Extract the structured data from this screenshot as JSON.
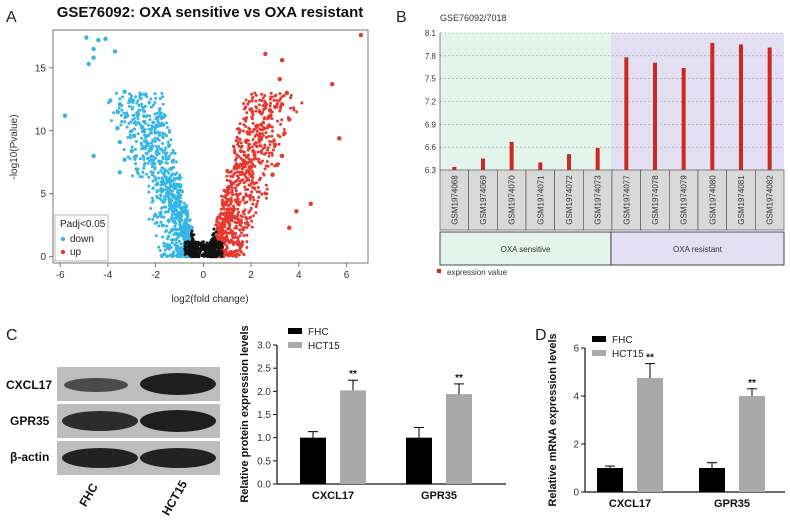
{
  "panels": {
    "a": "A",
    "b": "B",
    "c": "C",
    "d": "D"
  },
  "colors": {
    "down": "#35b6e6",
    "up": "#e8382f",
    "ns": "#111111",
    "expression": "#cc2a1f",
    "sensitive_bg": "#e3f4ec",
    "resistant_bg": "#e3e0f3",
    "fhc": "#000000",
    "hct15": "#a9a9a9"
  },
  "chart_data": [
    {
      "id": "volcano",
      "type": "scatter",
      "title": "GSE76092: OXA sensitive vs OXA resistant",
      "xlabel": "log2(fold change)",
      "ylabel": "-log10(Pvalue)",
      "xlim": [
        -6.3,
        6.9
      ],
      "ylim": [
        -0.5,
        18
      ],
      "xticks": [
        -6,
        -4,
        -2,
        0,
        2,
        4,
        6
      ],
      "yticks": [
        0,
        5,
        10,
        15
      ],
      "legend": {
        "title": "Padj<0.05",
        "items": [
          "down",
          "up"
        ],
        "position": "bottom-left"
      },
      "series": [
        {
          "name": "down",
          "points": [
            [
              -5.8,
              11.2
            ],
            [
              -4.9,
              17.4
            ],
            [
              -4.6,
              16.5
            ],
            [
              -4.4,
              17.2
            ],
            [
              -4.6,
              15.8
            ],
            [
              -4.8,
              15.3
            ],
            [
              -4.1,
              17.3
            ],
            [
              -3.7,
              16.3
            ],
            [
              -3.9,
              12.4
            ],
            [
              -3.3,
              13.1
            ],
            [
              -3.5,
              12.1
            ],
            [
              -3.2,
              11.2
            ],
            [
              -3.6,
              10.2
            ],
            [
              -3.5,
              9.1
            ],
            [
              -3.0,
              8.4
            ],
            [
              -2.9,
              9.6
            ],
            [
              -3.3,
              7.7
            ],
            [
              -3.5,
              6.7
            ],
            [
              -4.6,
              8.0
            ]
          ]
        },
        {
          "name": "up",
          "points": [
            [
              6.6,
              17.6
            ],
            [
              5.4,
              13.7
            ],
            [
              5.7,
              9.4
            ],
            [
              3.3,
              15.6
            ],
            [
              3.2,
              14.1
            ],
            [
              3.5,
              13.0
            ],
            [
              3.3,
              12.1
            ],
            [
              3.6,
              10.9
            ],
            [
              3.4,
              9.8
            ],
            [
              3.0,
              8.9
            ],
            [
              3.3,
              8.0
            ],
            [
              3.1,
              7.3
            ],
            [
              4.5,
              4.2
            ],
            [
              3.9,
              3.6
            ],
            [
              3.6,
              2.3
            ],
            [
              2.6,
              16.1
            ],
            [
              2.8,
              11.6
            ],
            [
              2.9,
              6.5
            ]
          ]
        },
        {
          "name": "ns",
          "points": []
        }
      ]
    },
    {
      "id": "expression",
      "type": "bar",
      "title": "GSE76092/7018",
      "categories": [
        "GSM1974068",
        "GSM1974069",
        "GSM1974070",
        "GSM1974071",
        "GSM1974072",
        "GSM1974073",
        "GSM1974077",
        "GSM1974078",
        "GSM1974079",
        "GSM1974080",
        "GSM1974081",
        "GSM1974082"
      ],
      "groups": [
        {
          "name": "OXA sensitive",
          "count": 6
        },
        {
          "name": "OXA resistant",
          "count": 6
        }
      ],
      "series": [
        {
          "name": "expression value",
          "values": [
            6.34,
            6.45,
            6.67,
            6.4,
            6.51,
            6.59,
            7.78,
            7.71,
            7.64,
            7.97,
            7.95,
            7.91
          ]
        }
      ],
      "ylim": [
        6.3,
        8.1
      ],
      "yticks": [
        "6.3",
        "6.6",
        "6.9",
        "7.2",
        "7.5",
        "7.8",
        "8.1"
      ],
      "legend": {
        "items": [
          "expression value"
        ],
        "position": "bottom-left"
      }
    },
    {
      "id": "protein",
      "type": "bar",
      "categories": [
        "CXCL17",
        "GPR35"
      ],
      "series": [
        {
          "name": "FHC",
          "values": [
            1.0,
            1.0
          ],
          "errors": [
            0.13,
            0.22
          ]
        },
        {
          "name": "HCT15",
          "values": [
            2.02,
            1.94
          ],
          "errors": [
            0.22,
            0.22
          ]
        }
      ],
      "significance": [
        "**",
        "**"
      ],
      "ylabel": "Relative protein expression levels",
      "ylim": [
        0,
        3.0
      ],
      "yticks": [
        "0.0",
        "0.5",
        "1.0",
        "1.5",
        "2.0",
        "2.5",
        "3.0"
      ],
      "legend": {
        "items": [
          "FHC",
          "HCT15"
        ],
        "position": "top-left"
      }
    },
    {
      "id": "mrna",
      "type": "bar",
      "categories": [
        "CXCL17",
        "GPR35"
      ],
      "series": [
        {
          "name": "FHC",
          "values": [
            1.0,
            1.0
          ],
          "errors": [
            0.08,
            0.22
          ]
        },
        {
          "name": "HCT15",
          "values": [
            4.75,
            4.0
          ],
          "errors": [
            0.6,
            0.3
          ]
        }
      ],
      "significance": [
        "**",
        "**"
      ],
      "ylabel": "Relative mRNA expression levels",
      "ylim": [
        0,
        6
      ],
      "yticks": [
        "0",
        "2",
        "4",
        "6"
      ],
      "legend": {
        "items": [
          "FHC",
          "HCT15"
        ],
        "position": "top-left"
      }
    }
  ],
  "western_blot": {
    "rows": [
      "CXCL17",
      "GPR35",
      "β-actin"
    ],
    "lanes": [
      "FHC",
      "HCT15"
    ]
  }
}
